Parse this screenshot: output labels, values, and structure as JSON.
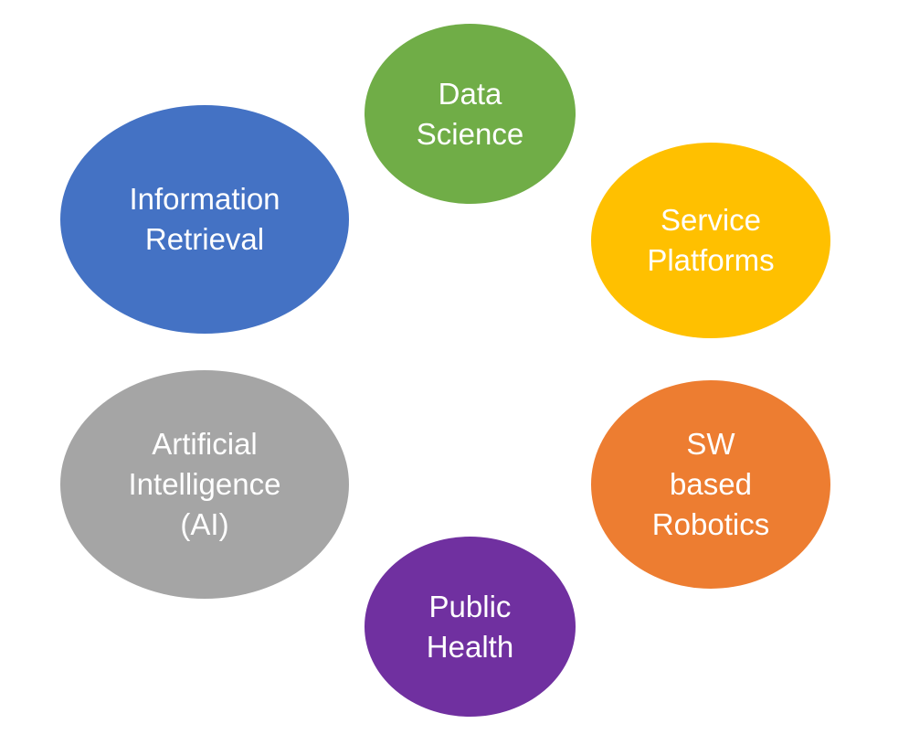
{
  "bubbles": {
    "data_science": {
      "lines": [
        "Data",
        "Science"
      ],
      "color": "#70AD47"
    },
    "information_retrieval": {
      "lines": [
        "Information",
        "Retrieval"
      ],
      "color": "#4472C4"
    },
    "service_platforms": {
      "lines": [
        "Service",
        "Platforms"
      ],
      "color": "#FFC000"
    },
    "artificial_intelligence": {
      "lines": [
        "Artificial",
        "Intelligence",
        "(AI)"
      ],
      "color": "#A5A5A5"
    },
    "sw_based_robotics": {
      "lines": [
        "SW",
        "based",
        "Robotics"
      ],
      "color": "#ED7D31"
    },
    "public_health": {
      "lines": [
        "Public",
        "Health"
      ],
      "color": "#7030A0"
    }
  }
}
